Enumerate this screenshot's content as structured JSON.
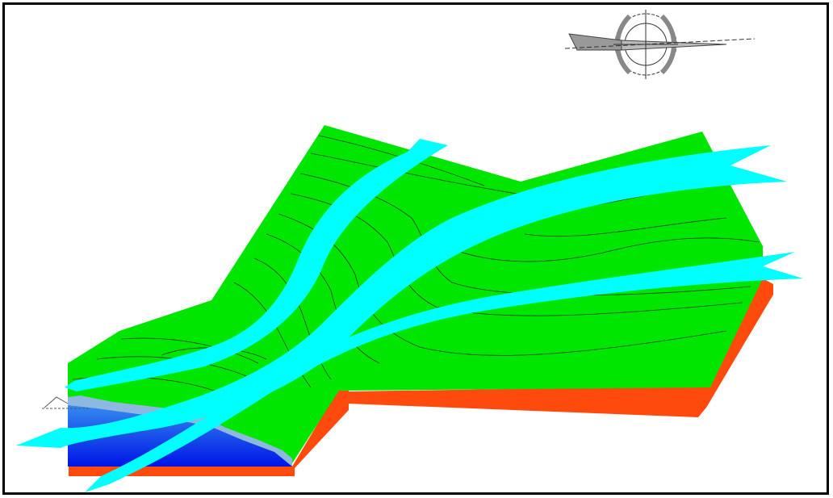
{
  "title": "",
  "colors": {
    "surface": "#00e600",
    "base_layer": "#ff4a0d",
    "water_deep": "#0014e6",
    "water_light": "#3b9bf0",
    "shore": "#7fb0e0",
    "flow_arrow": "#00ffff",
    "contour": "#1a3a1a",
    "frame": "#000000"
  },
  "icons": [
    "compass-rose-icon"
  ]
}
